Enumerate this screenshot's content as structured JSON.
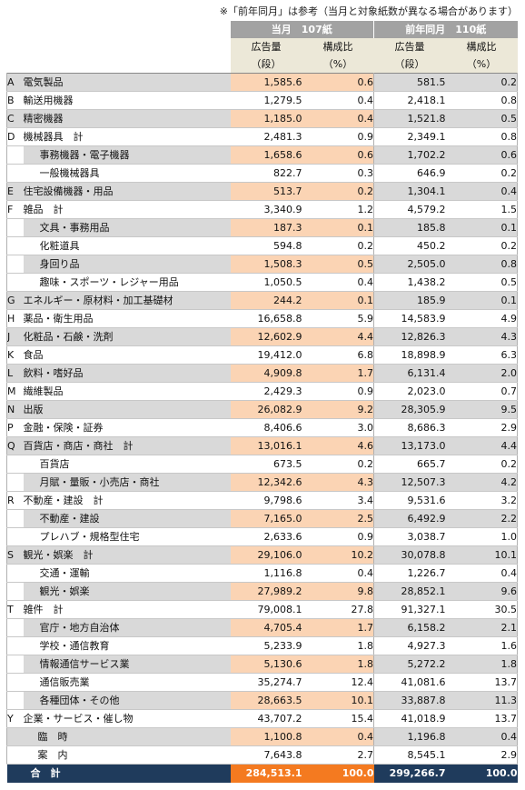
{
  "note": "※「前年同月」は参考（当月と対象紙数が異なる場合があります）",
  "header": {
    "current": "当月　107紙",
    "previous": "前年同月　110紙",
    "volume_label": "広告量",
    "ratio_label": "構成比",
    "volume_unit": "（段）",
    "ratio_unit": "（%）"
  },
  "rows": [
    {
      "code": "A",
      "name": "電気製品",
      "sub": false,
      "cur": "1,585.6",
      "cur_r": "0.6",
      "prev": "581.5",
      "prev_r": "0.2",
      "alt": true,
      "grp": true
    },
    {
      "code": "B",
      "name": "輸送用機器",
      "sub": false,
      "cur": "1,279.5",
      "cur_r": "0.4",
      "prev": "2,418.1",
      "prev_r": "0.8",
      "alt": false,
      "grp": true
    },
    {
      "code": "C",
      "name": "精密機器",
      "sub": false,
      "cur": "1,185.0",
      "cur_r": "0.4",
      "prev": "1,521.8",
      "prev_r": "0.5",
      "alt": true,
      "grp": true
    },
    {
      "code": "D",
      "name": "機械器具　計",
      "sub": false,
      "cur": "2,481.3",
      "cur_r": "0.9",
      "prev": "2,349.1",
      "prev_r": "0.8",
      "alt": false,
      "grp": true
    },
    {
      "code": "",
      "name": "事務機器・電子機器",
      "sub": true,
      "cur": "1,658.6",
      "cur_r": "0.6",
      "prev": "1,702.2",
      "prev_r": "0.6",
      "alt": true,
      "grp": false
    },
    {
      "code": "",
      "name": "一般機械器具",
      "sub": true,
      "cur": "822.7",
      "cur_r": "0.3",
      "prev": "646.9",
      "prev_r": "0.2",
      "alt": false,
      "grp": false
    },
    {
      "code": "E",
      "name": "住宅設備機器・用品",
      "sub": false,
      "cur": "513.7",
      "cur_r": "0.2",
      "prev": "1,304.1",
      "prev_r": "0.4",
      "alt": true,
      "grp": true
    },
    {
      "code": "F",
      "name": "雑品　計",
      "sub": false,
      "cur": "3,340.9",
      "cur_r": "1.2",
      "prev": "4,579.2",
      "prev_r": "1.5",
      "alt": false,
      "grp": true
    },
    {
      "code": "",
      "name": "文具・事務用品",
      "sub": true,
      "cur": "187.3",
      "cur_r": "0.1",
      "prev": "185.8",
      "prev_r": "0.1",
      "alt": true,
      "grp": false
    },
    {
      "code": "",
      "name": "化粧道具",
      "sub": true,
      "cur": "594.8",
      "cur_r": "0.2",
      "prev": "450.2",
      "prev_r": "0.2",
      "alt": false,
      "grp": false
    },
    {
      "code": "",
      "name": "身回り品",
      "sub": true,
      "cur": "1,508.3",
      "cur_r": "0.5",
      "prev": "2,505.0",
      "prev_r": "0.8",
      "alt": true,
      "grp": false
    },
    {
      "code": "",
      "name": "趣味・スポーツ・レジャー用品",
      "sub": true,
      "cur": "1,050.5",
      "cur_r": "0.4",
      "prev": "1,438.2",
      "prev_r": "0.5",
      "alt": false,
      "grp": false
    },
    {
      "code": "G",
      "name": "エネルギー・原材料・加工基礎材",
      "sub": false,
      "cur": "244.2",
      "cur_r": "0.1",
      "prev": "185.9",
      "prev_r": "0.1",
      "alt": true,
      "grp": true
    },
    {
      "code": "H",
      "name": "薬品・衛生用品",
      "sub": false,
      "cur": "16,658.8",
      "cur_r": "5.9",
      "prev": "14,583.9",
      "prev_r": "4.9",
      "alt": false,
      "grp": true
    },
    {
      "code": "J",
      "name": "化粧品・石鹸・洗剤",
      "sub": false,
      "cur": "12,602.9",
      "cur_r": "4.4",
      "prev": "12,826.3",
      "prev_r": "4.3",
      "alt": true,
      "grp": true
    },
    {
      "code": "K",
      "name": "食品",
      "sub": false,
      "cur": "19,412.0",
      "cur_r": "6.8",
      "prev": "18,898.9",
      "prev_r": "6.3",
      "alt": false,
      "grp": true
    },
    {
      "code": "L",
      "name": "飲料・嗜好品",
      "sub": false,
      "cur": "4,909.8",
      "cur_r": "1.7",
      "prev": "6,131.4",
      "prev_r": "2.0",
      "alt": true,
      "grp": true
    },
    {
      "code": "M",
      "name": "繊維製品",
      "sub": false,
      "cur": "2,429.3",
      "cur_r": "0.9",
      "prev": "2,023.0",
      "prev_r": "0.7",
      "alt": false,
      "grp": true
    },
    {
      "code": "N",
      "name": "出版",
      "sub": false,
      "cur": "26,082.9",
      "cur_r": "9.2",
      "prev": "28,305.9",
      "prev_r": "9.5",
      "alt": true,
      "grp": true
    },
    {
      "code": "P",
      "name": "金融・保険・証券",
      "sub": false,
      "cur": "8,406.6",
      "cur_r": "3.0",
      "prev": "8,686.3",
      "prev_r": "2.9",
      "alt": false,
      "grp": true
    },
    {
      "code": "Q",
      "name": "百貨店・商店・商社　計",
      "sub": false,
      "cur": "13,016.1",
      "cur_r": "4.6",
      "prev": "13,173.0",
      "prev_r": "4.4",
      "alt": true,
      "grp": true
    },
    {
      "code": "",
      "name": "百貨店",
      "sub": true,
      "cur": "673.5",
      "cur_r": "0.2",
      "prev": "665.7",
      "prev_r": "0.2",
      "alt": false,
      "grp": false
    },
    {
      "code": "",
      "name": "月賦・量販・小売店・商社",
      "sub": true,
      "cur": "12,342.6",
      "cur_r": "4.3",
      "prev": "12,507.3",
      "prev_r": "4.2",
      "alt": true,
      "grp": false
    },
    {
      "code": "R",
      "name": "不動産・建設　計",
      "sub": false,
      "cur": "9,798.6",
      "cur_r": "3.4",
      "prev": "9,531.6",
      "prev_r": "3.2",
      "alt": false,
      "grp": true
    },
    {
      "code": "",
      "name": "不動産・建設",
      "sub": true,
      "cur": "7,165.0",
      "cur_r": "2.5",
      "prev": "6,492.9",
      "prev_r": "2.2",
      "alt": true,
      "grp": false
    },
    {
      "code": "",
      "name": "プレハブ・規格型住宅",
      "sub": true,
      "cur": "2,633.6",
      "cur_r": "0.9",
      "prev": "3,038.7",
      "prev_r": "1.0",
      "alt": false,
      "grp": false
    },
    {
      "code": "S",
      "name": "観光・娯楽　計",
      "sub": false,
      "cur": "29,106.0",
      "cur_r": "10.2",
      "prev": "30,078.8",
      "prev_r": "10.1",
      "alt": true,
      "grp": true
    },
    {
      "code": "",
      "name": "交通・運輸",
      "sub": true,
      "cur": "1,116.8",
      "cur_r": "0.4",
      "prev": "1,226.7",
      "prev_r": "0.4",
      "alt": false,
      "grp": false
    },
    {
      "code": "",
      "name": "観光・娯楽",
      "sub": true,
      "cur": "27,989.2",
      "cur_r": "9.8",
      "prev": "28,852.1",
      "prev_r": "9.6",
      "alt": true,
      "grp": false
    },
    {
      "code": "T",
      "name": "雑件　計",
      "sub": false,
      "cur": "79,008.1",
      "cur_r": "27.8",
      "prev": "91,327.1",
      "prev_r": "30.5",
      "alt": false,
      "grp": true
    },
    {
      "code": "",
      "name": "官庁・地方自治体",
      "sub": true,
      "cur": "4,705.4",
      "cur_r": "1.7",
      "prev": "6,158.2",
      "prev_r": "2.1",
      "alt": true,
      "grp": false
    },
    {
      "code": "",
      "name": "学校・通信教育",
      "sub": true,
      "cur": "5,233.9",
      "cur_r": "1.8",
      "prev": "4,927.3",
      "prev_r": "1.6",
      "alt": false,
      "grp": false
    },
    {
      "code": "",
      "name": "情報通信サービス業",
      "sub": true,
      "cur": "5,130.6",
      "cur_r": "1.8",
      "prev": "5,272.2",
      "prev_r": "1.8",
      "alt": true,
      "grp": false
    },
    {
      "code": "",
      "name": "通信販売業",
      "sub": true,
      "cur": "35,274.7",
      "cur_r": "12.4",
      "prev": "41,081.6",
      "prev_r": "13.7",
      "alt": false,
      "grp": false
    },
    {
      "code": "",
      "name": "各種団体・その他",
      "sub": true,
      "cur": "28,663.5",
      "cur_r": "10.1",
      "prev": "33,887.8",
      "prev_r": "11.3",
      "alt": true,
      "grp": false
    },
    {
      "code": "Y",
      "name": "企業・サービス・催し物",
      "sub": false,
      "cur": "43,707.2",
      "cur_r": "15.4",
      "prev": "41,018.9",
      "prev_r": "13.7",
      "alt": false,
      "grp": true
    },
    {
      "code": "",
      "name": "臨　時",
      "sub": false,
      "indent": true,
      "cur": "1,100.8",
      "cur_r": "0.4",
      "prev": "1,196.8",
      "prev_r": "0.4",
      "alt": true,
      "grp": true
    },
    {
      "code": "",
      "name": "案　内",
      "sub": false,
      "indent": true,
      "cur": "7,643.8",
      "cur_r": "2.7",
      "prev": "8,545.1",
      "prev_r": "2.9",
      "alt": false,
      "grp": true
    }
  ],
  "total": {
    "label": "合　計",
    "cur": "284,513.1",
    "cur_r": "100.0",
    "prev": "299,266.7",
    "prev_r": "100.0"
  },
  "colors": {
    "header_gray": "#a2a2a2",
    "header_beige": "#ece8d8",
    "row_gray": "#d9d9d9",
    "row_peach": "#fbd4b4",
    "total_navy": "#1f3b5c",
    "total_orange": "#f47a20"
  }
}
